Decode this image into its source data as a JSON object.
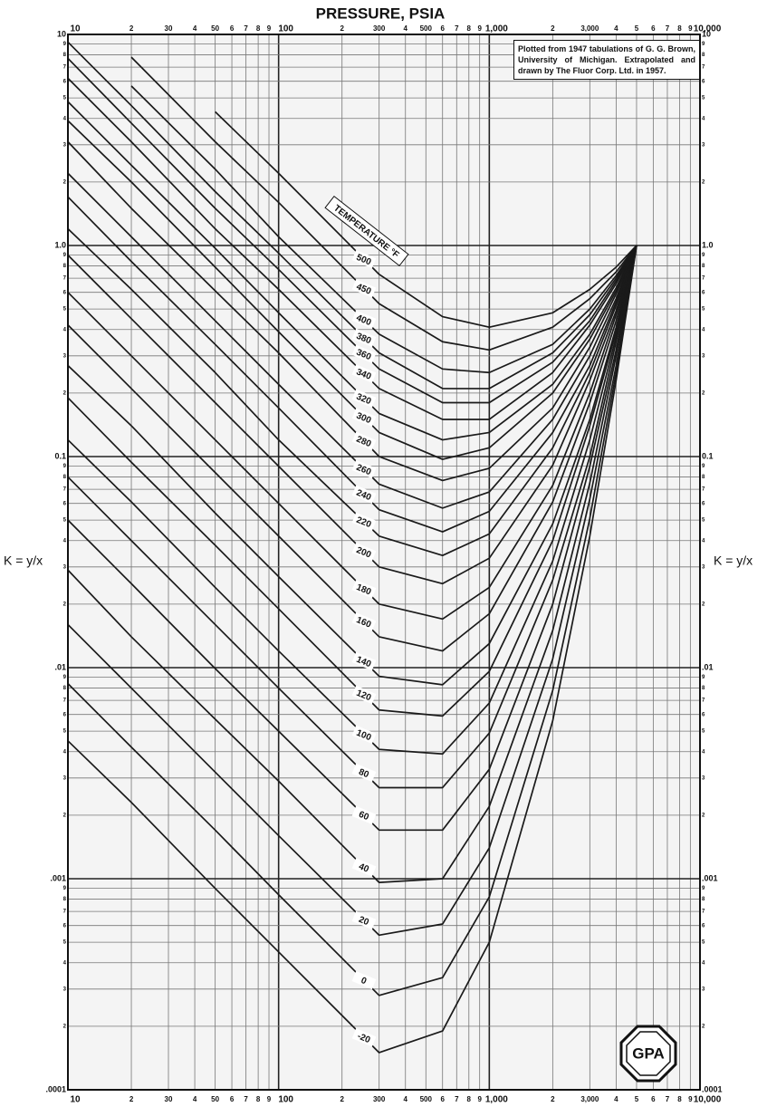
{
  "chart_data": {
    "type": "line",
    "title": "PRESSURE, PSIA",
    "y_label": "K = y/x",
    "legend_title": "TEMPERATURE °F",
    "annotation": "Plotted from 1947 tabulations of G. G. Brown, University of Michigan. Extrapolated and drawn by The Fluor Corp. Ltd. in 1957.",
    "logo_text": "GPA",
    "xscale": "log",
    "yscale": "log",
    "grid": true,
    "color": "#1a1a1a",
    "xlim": [
      10,
      10000
    ],
    "ylim": [
      0.0001,
      10
    ],
    "xticks": [
      10,
      {
        "value": 20,
        "label": "2"
      },
      30,
      {
        "value": 40,
        "label": "4"
      },
      50,
      {
        "value": 60,
        "label": "6"
      },
      {
        "value": 70,
        "label": "7"
      },
      {
        "value": 80,
        "label": "8"
      },
      {
        "value": 90,
        "label": "9"
      },
      100,
      {
        "value": 200,
        "label": "2"
      },
      300,
      {
        "value": 400,
        "label": "4"
      },
      500,
      {
        "value": 600,
        "label": "6"
      },
      {
        "value": 700,
        "label": "7"
      },
      {
        "value": 800,
        "label": "8"
      },
      {
        "value": 900,
        "label": "9"
      },
      {
        "value": 1000,
        "label": "1,000"
      },
      {
        "value": 2000,
        "label": "2"
      },
      {
        "value": 3000,
        "label": "3,000"
      },
      {
        "value": 4000,
        "label": "4"
      },
      {
        "value": 5000,
        "label": "5"
      },
      {
        "value": 6000,
        "label": "6"
      },
      {
        "value": 7000,
        "label": "7"
      },
      {
        "value": 8000,
        "label": "8"
      },
      {
        "value": 9000,
        "label": "9"
      },
      {
        "value": 10000,
        "label": "10,000"
      }
    ],
    "yticks": [
      {
        "value": 0.0001,
        "label": ".0001"
      },
      {
        "value": 0.0002,
        "label": "2"
      },
      {
        "value": 0.0003,
        "label": "3"
      },
      {
        "value": 0.0004,
        "label": "4"
      },
      {
        "value": 0.0005,
        "label": "5"
      },
      {
        "value": 0.0006,
        "label": "6"
      },
      {
        "value": 0.0007,
        "label": "7"
      },
      {
        "value": 0.0008,
        "label": "8"
      },
      {
        "value": 0.0009,
        "label": "9"
      },
      {
        "value": 0.001,
        "label": ".001"
      },
      {
        "value": 0.002,
        "label": "2"
      },
      {
        "value": 0.003,
        "label": "3"
      },
      {
        "value": 0.004,
        "label": "4"
      },
      {
        "value": 0.005,
        "label": "5"
      },
      {
        "value": 0.006,
        "label": "6"
      },
      {
        "value": 0.007,
        "label": "7"
      },
      {
        "value": 0.008,
        "label": "8"
      },
      {
        "value": 0.009,
        "label": "9"
      },
      {
        "value": 0.01,
        "label": ".01"
      },
      {
        "value": 0.02,
        "label": "2"
      },
      {
        "value": 0.03,
        "label": "3"
      },
      {
        "value": 0.04,
        "label": "4"
      },
      {
        "value": 0.05,
        "label": "5"
      },
      {
        "value": 0.06,
        "label": "6"
      },
      {
        "value": 0.07,
        "label": "7"
      },
      {
        "value": 0.08,
        "label": "8"
      },
      {
        "value": 0.09,
        "label": "9"
      },
      0.1,
      {
        "value": 0.2,
        "label": "2"
      },
      {
        "value": 0.3,
        "label": "3"
      },
      {
        "value": 0.4,
        "label": "4"
      },
      {
        "value": 0.5,
        "label": "5"
      },
      {
        "value": 0.6,
        "label": "6"
      },
      {
        "value": 0.7,
        "label": "7"
      },
      {
        "value": 0.8,
        "label": "8"
      },
      {
        "value": 0.9,
        "label": "9"
      },
      {
        "value": 1,
        "label": "1.0"
      },
      2,
      3,
      4,
      5,
      6,
      7,
      8,
      9,
      10
    ],
    "x": [
      10,
      20,
      50,
      100,
      300,
      600,
      1000,
      2000,
      3000,
      4000,
      5000
    ],
    "series": [
      {
        "name": "500",
        "values": [
          null,
          null,
          4.3,
          2.2,
          0.73,
          0.46,
          0.41,
          0.48,
          0.62,
          0.79,
          1
        ]
      },
      {
        "name": "450",
        "values": [
          null,
          7.8,
          3.1,
          1.6,
          0.53,
          0.35,
          0.32,
          0.41,
          0.56,
          0.75,
          1
        ]
      },
      {
        "name": "400",
        "values": [
          null,
          5.7,
          2.3,
          1.1,
          0.38,
          0.26,
          0.25,
          0.34,
          0.5,
          0.72,
          1
        ]
      },
      {
        "name": "380",
        "values": [
          9.2,
          4.6,
          1.8,
          0.92,
          0.31,
          0.21,
          0.21,
          0.31,
          0.47,
          0.7,
          1
        ]
      },
      {
        "name": "360",
        "values": [
          7.7,
          3.8,
          1.5,
          0.77,
          0.26,
          0.18,
          0.18,
          0.28,
          0.44,
          0.68,
          1
        ]
      },
      {
        "name": "340",
        "values": [
          6.2,
          3.1,
          1.2,
          0.62,
          0.21,
          0.15,
          0.15,
          0.25,
          0.42,
          0.66,
          1
        ]
      },
      {
        "name": "320",
        "values": [
          4.8,
          2.4,
          0.97,
          0.48,
          0.16,
          0.12,
          0.13,
          0.22,
          0.38,
          0.63,
          1
        ]
      },
      {
        "name": "300",
        "values": [
          3.9,
          2.0,
          0.79,
          0.39,
          0.13,
          0.097,
          0.11,
          0.2,
          0.36,
          0.61,
          1
        ]
      },
      {
        "name": "280",
        "values": [
          3.1,
          1.5,
          0.61,
          0.31,
          0.1,
          0.077,
          0.088,
          0.17,
          0.33,
          0.59,
          1
        ]
      },
      {
        "name": "260",
        "values": [
          2.2,
          1.1,
          0.44,
          0.22,
          0.074,
          0.057,
          0.068,
          0.15,
          0.3,
          0.56,
          1
        ]
      },
      {
        "name": "240",
        "values": [
          1.7,
          0.84,
          0.34,
          0.17,
          0.056,
          0.044,
          0.055,
          0.13,
          0.27,
          0.54,
          1
        ]
      },
      {
        "name": "220",
        "values": [
          1.2,
          0.62,
          0.25,
          0.12,
          0.042,
          0.034,
          0.043,
          0.11,
          0.25,
          0.52,
          1
        ]
      },
      {
        "name": "200",
        "values": [
          0.9,
          0.45,
          0.18,
          0.09,
          0.03,
          0.025,
          0.033,
          0.091,
          0.23,
          0.49,
          1
        ]
      },
      {
        "name": "180",
        "values": [
          0.6,
          0.3,
          0.12,
          0.06,
          0.02,
          0.017,
          0.024,
          0.073,
          0.2,
          0.47,
          1
        ]
      },
      {
        "name": "160",
        "values": [
          0.42,
          0.21,
          0.084,
          0.042,
          0.014,
          0.012,
          0.018,
          0.061,
          0.18,
          0.44,
          1
        ]
      },
      {
        "name": "140",
        "values": [
          0.27,
          0.14,
          0.054,
          0.027,
          0.0091,
          0.0083,
          0.013,
          0.048,
          0.15,
          0.41,
          1
        ]
      },
      {
        "name": "120",
        "values": [
          0.19,
          0.094,
          0.038,
          0.019,
          0.0063,
          0.0059,
          0.0096,
          0.04,
          0.14,
          0.39,
          1
        ]
      },
      {
        "name": "100",
        "values": [
          0.12,
          0.061,
          0.024,
          0.012,
          0.0041,
          0.0039,
          0.0068,
          0.032,
          0.12,
          0.37,
          1
        ]
      },
      {
        "name": "80",
        "values": [
          0.08,
          0.04,
          0.016,
          0.008,
          0.0027,
          0.0027,
          0.0049,
          0.026,
          0.1,
          0.35,
          1
        ]
      },
      {
        "name": "60",
        "values": [
          0.05,
          0.025,
          0.0099,
          0.005,
          0.0017,
          0.0017,
          0.0033,
          0.02,
          0.09,
          0.32,
          1
        ]
      },
      {
        "name": "40",
        "values": [
          0.029,
          0.014,
          0.0057,
          0.0029,
          0.00096,
          0.001,
          0.0022,
          0.015,
          0.075,
          0.3,
          1
        ]
      },
      {
        "name": "20",
        "values": [
          0.016,
          0.008,
          0.0032,
          0.0016,
          0.00054,
          0.00061,
          0.0014,
          0.011,
          0.063,
          0.27,
          1
        ]
      },
      {
        "name": "0",
        "values": [
          0.0084,
          0.0042,
          0.0017,
          0.00084,
          0.00028,
          0.00034,
          0.00082,
          0.0078,
          0.051,
          0.25,
          1
        ]
      },
      {
        "name": "-20",
        "values": [
          0.0045,
          0.0023,
          0.0009,
          0.00045,
          0.00015,
          0.00019,
          0.0005,
          0.0056,
          0.042,
          0.23,
          1
        ]
      }
    ]
  }
}
